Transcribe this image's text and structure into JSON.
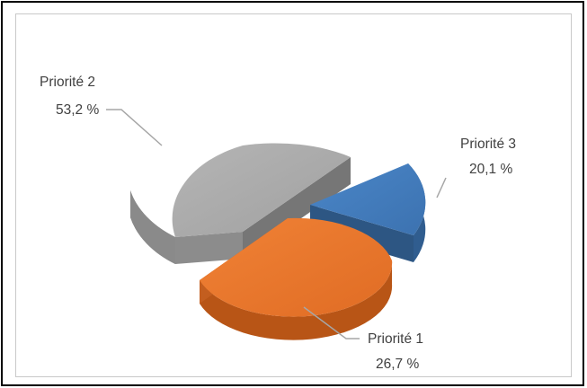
{
  "chart_data": {
    "type": "pie",
    "title": "",
    "slices": [
      {
        "label": "Priorité 2",
        "value": 53.2,
        "value_text": "53,2 %",
        "color": "#9c9c9c"
      },
      {
        "label": "Priorité 3",
        "value": 20.1,
        "value_text": "20,1 %",
        "color": "#3f78b8"
      },
      {
        "label": "Priorité 1",
        "value": 26.7,
        "value_text": "26,7 %",
        "color": "#e8742c"
      }
    ],
    "style": "3d-exploded",
    "legend": "none"
  }
}
